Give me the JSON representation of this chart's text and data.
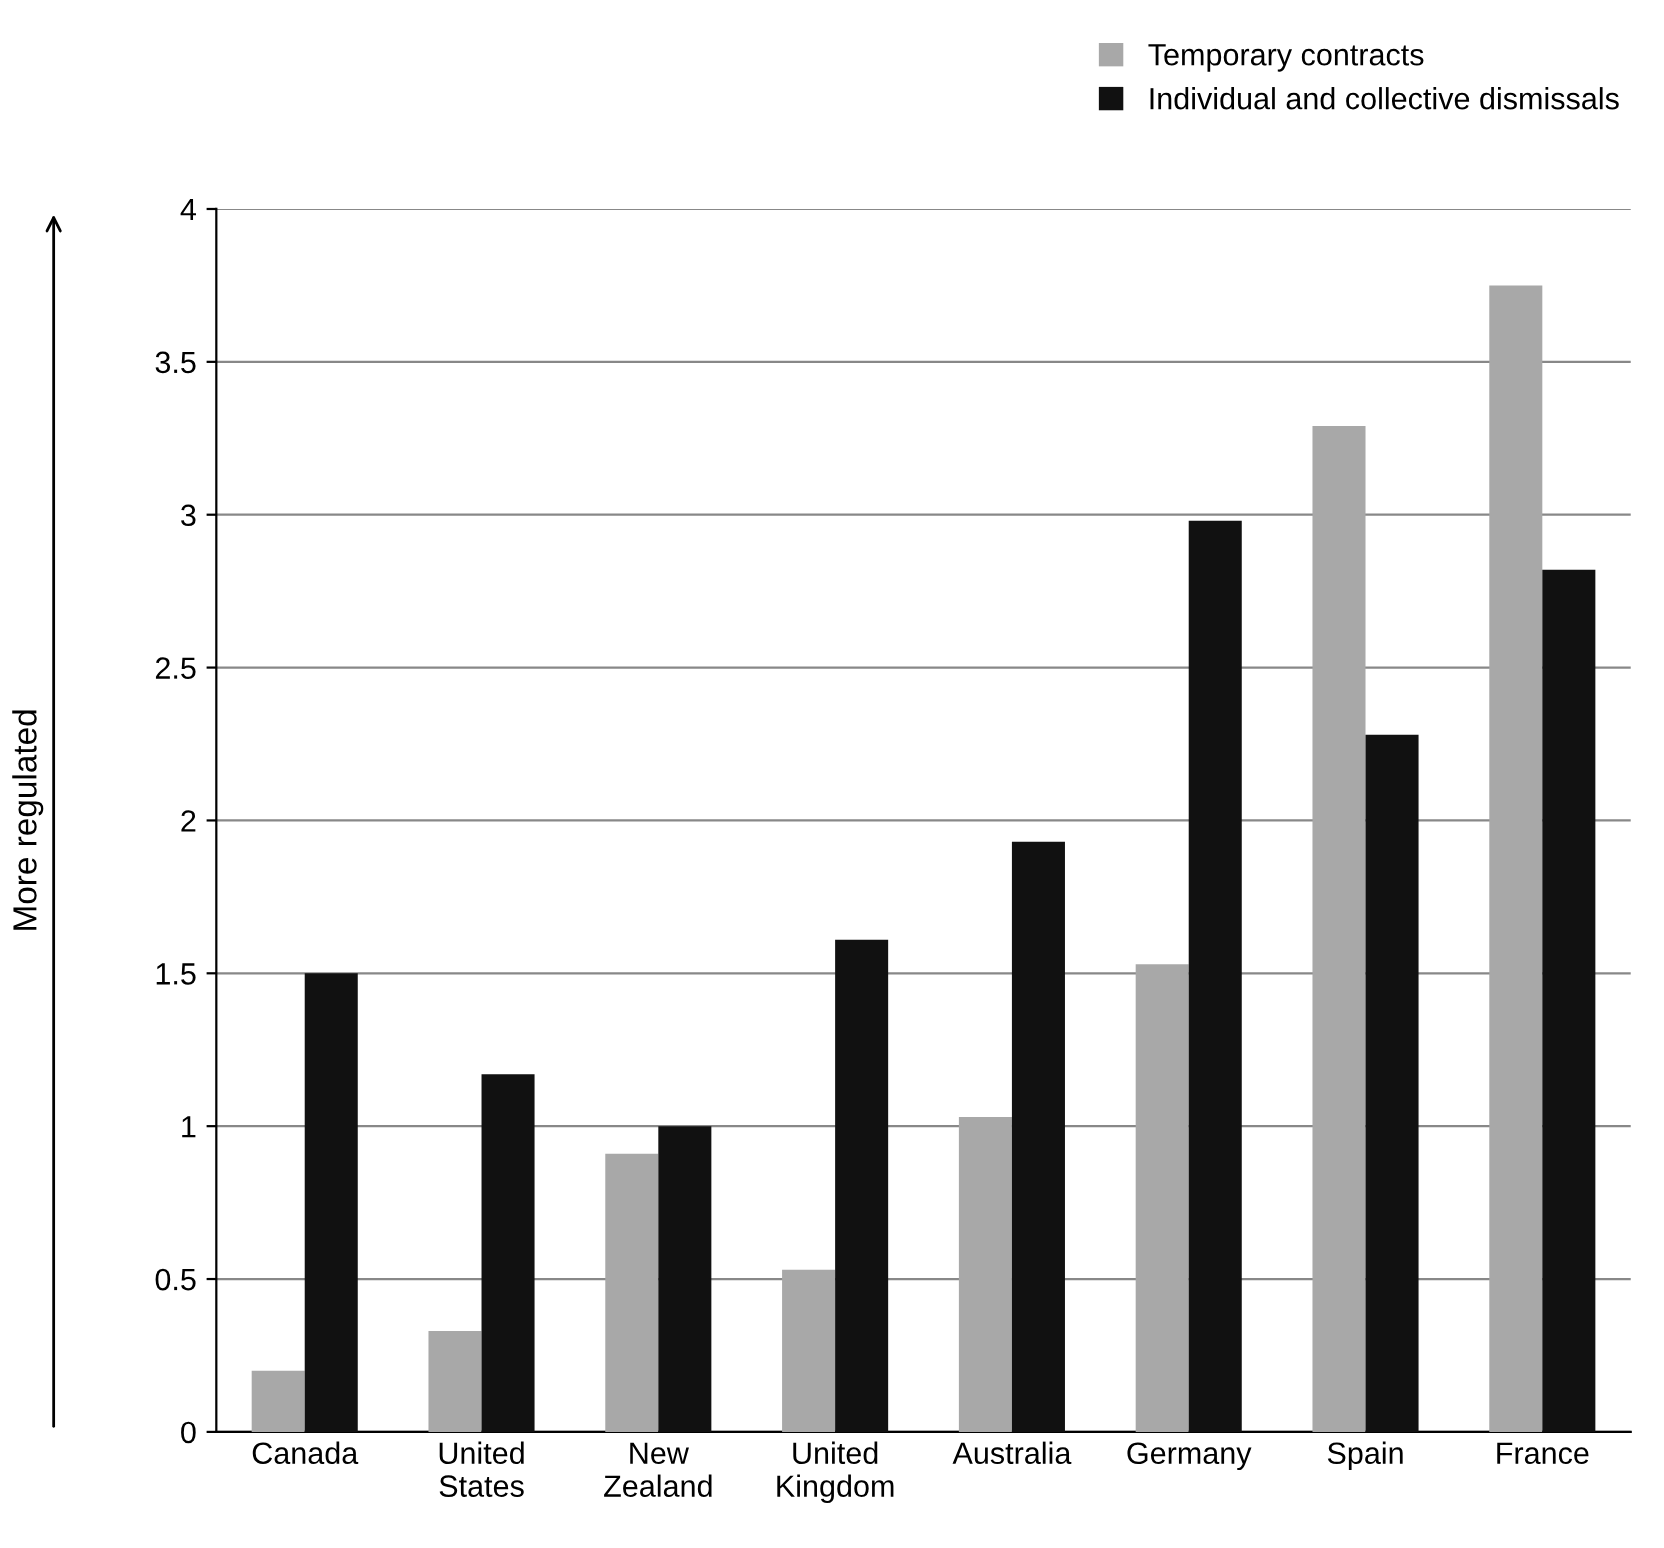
{
  "chart_data": {
    "type": "bar",
    "ylabel": "More regulated",
    "categories": [
      "Canada",
      "United\nStates",
      "New\nZealand",
      "United\nKingdom",
      "Australia",
      "Germany",
      "Spain",
      "France"
    ],
    "series": [
      {
        "name": "Temporary contracts",
        "color": "#a8a8a8",
        "values": [
          0.2,
          0.33,
          0.91,
          0.53,
          1.03,
          1.53,
          3.29,
          3.75
        ]
      },
      {
        "name": "Individual and collective dismissals",
        "color": "#111111",
        "values": [
          1.5,
          1.17,
          1.0,
          1.61,
          1.93,
          2.98,
          2.28,
          2.82
        ]
      }
    ],
    "ylim": [
      0,
      4
    ],
    "yticks": [
      0,
      0.5,
      1,
      1.5,
      2,
      2.5,
      3,
      3.5,
      4
    ],
    "grid": "y",
    "legend": "top right"
  }
}
